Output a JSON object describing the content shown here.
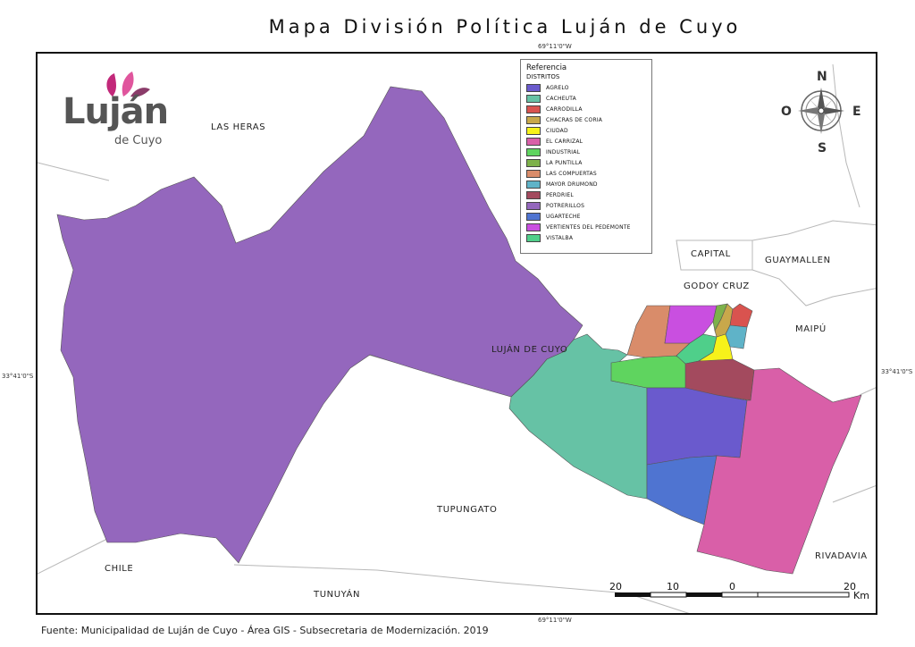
{
  "title": "Mapa División Política Luján de Cuyo",
  "coords": {
    "top": "69°11'0\"W",
    "bottom": "69°11'0\"W",
    "left": "33°41'0\"S",
    "right": "33°41'0\"S"
  },
  "logo": {
    "word": "Luján",
    "sub": "de Cuyo"
  },
  "compass": {
    "n": "N",
    "s": "S",
    "e": "E",
    "w": "O"
  },
  "legend": {
    "title": "Referencia",
    "subtitle": "DISTRITOS",
    "items": [
      {
        "label": "AGRELO",
        "color": "#6a5acd"
      },
      {
        "label": "CACHEUTA",
        "color": "#66c2a5"
      },
      {
        "label": "CARRODILLA",
        "color": "#d9534f"
      },
      {
        "label": "CHACRAS DE CORIA",
        "color": "#c8a84b"
      },
      {
        "label": "CIUDAD",
        "color": "#f7f21a"
      },
      {
        "label": "EL CARRIZAL",
        "color": "#d95fa8"
      },
      {
        "label": "INDUSTRIAL",
        "color": "#5fd45f"
      },
      {
        "label": "LA PUNTILLA",
        "color": "#7db14a"
      },
      {
        "label": "LAS COMPUERTAS",
        "color": "#d98c6a"
      },
      {
        "label": "MAYOR DRUMOND",
        "color": "#5fb3c8"
      },
      {
        "label": "PERDRIEL",
        "color": "#a34a5e"
      },
      {
        "label": "POTRERILLOS",
        "color": "#9467bd"
      },
      {
        "label": "UGARTECHE",
        "color": "#4f74d1"
      },
      {
        "label": "VERTIENTES DEL PEDEMONTE",
        "color": "#c94fe0"
      },
      {
        "label": "VISTALBA",
        "color": "#4fcf8a"
      }
    ]
  },
  "places": {
    "las_heras": "LAS HERAS",
    "capital": "CAPITAL",
    "guaymallen": "GUAYMALLEN",
    "godoy_cruz": "GODOY CRUZ",
    "maipu": "MAIPÚ",
    "lujan": "LUJÁN DE CUYO",
    "tupungato": "TUPUNGATO",
    "chile": "CHILE",
    "rivadavia": "RIVADAVIA",
    "tunuyan": "TUNUYÁN"
  },
  "scale": {
    "n1": "20",
    "n2": "10",
    "n3": "0",
    "n4": "20",
    "unit": "Km"
  },
  "source": "Fuente: Municipalidad de Luján de Cuyo - Área GIS - Subsecretaria de Modernización. 2019"
}
